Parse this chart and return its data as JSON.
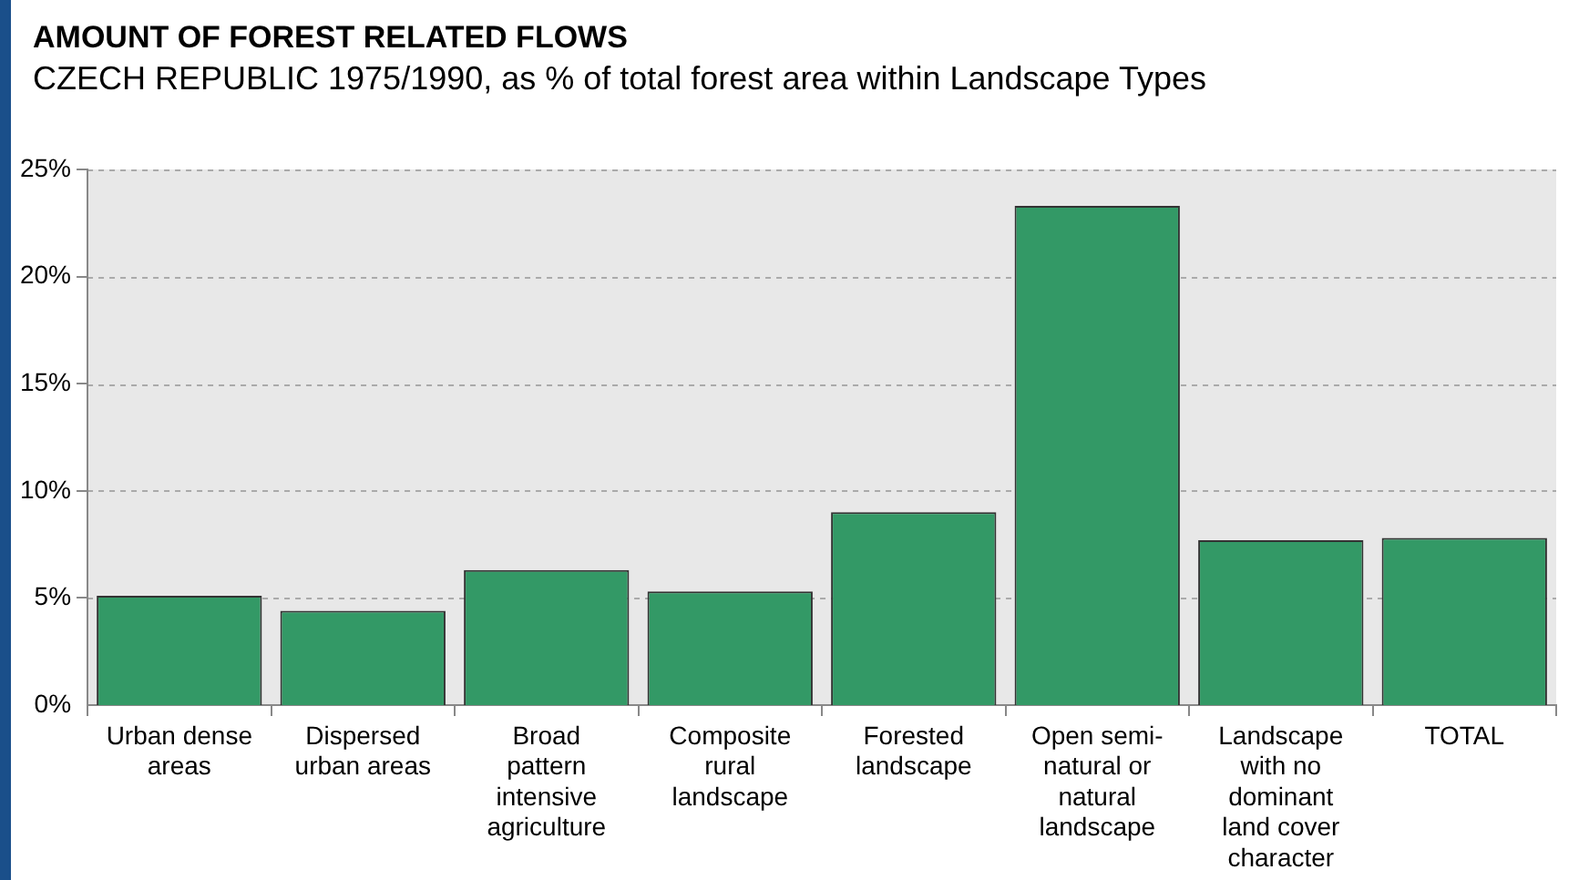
{
  "chart_data": {
    "type": "bar",
    "title": "AMOUNT OF FOREST RELATED FLOWS",
    "subtitle": "CZECH REPUBLIC 1975/1990,  as % of total forest area within Landscape Types",
    "categories": [
      "Urban dense areas",
      "Dispersed urban areas",
      "Broad pattern intensive agriculture",
      "Composite rural landscape",
      "Forested landscape",
      "Open semi-natural or natural landscape",
      "Landscape with no dominant land cover character",
      "TOTAL"
    ],
    "values": [
      5.1,
      4.4,
      6.3,
      5.3,
      9.0,
      23.3,
      7.7,
      7.8
    ],
    "color": "#339966",
    "ylim": [
      0,
      25
    ],
    "yticks": [
      {
        "value": 0,
        "label": "0%"
      },
      {
        "value": 5,
        "label": "5%"
      },
      {
        "value": 10,
        "label": "10%"
      },
      {
        "value": 15,
        "label": "15%"
      },
      {
        "value": 20,
        "label": "20%"
      },
      {
        "value": 25,
        "label": "25%"
      }
    ],
    "grid": "y"
  }
}
